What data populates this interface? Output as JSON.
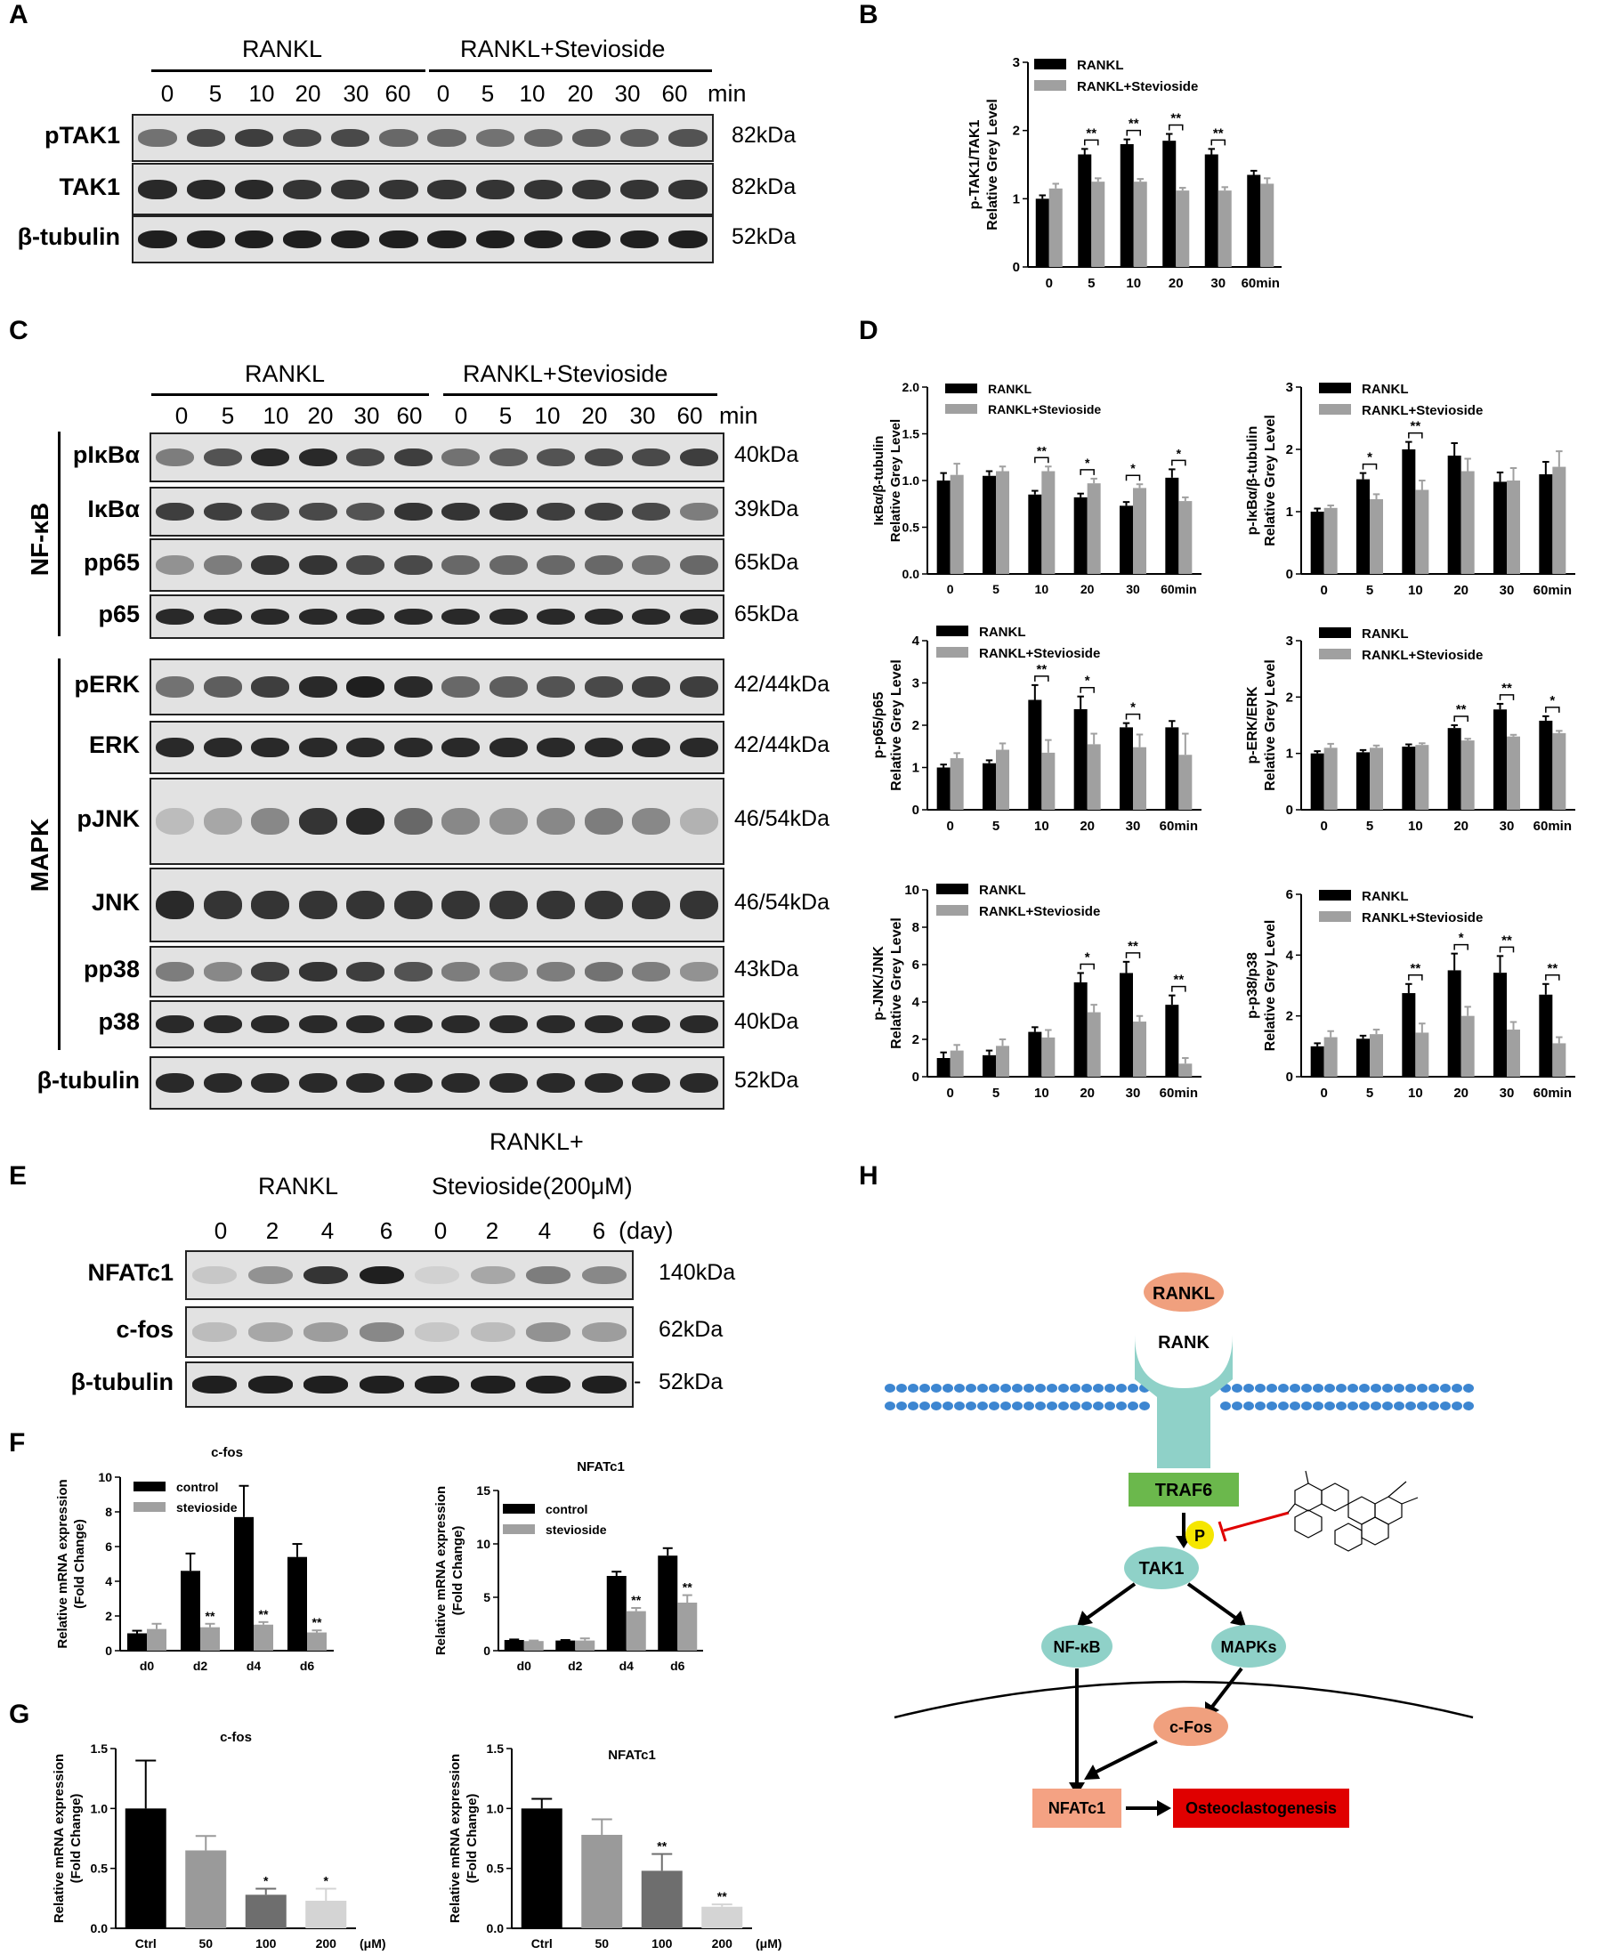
{
  "panels": {
    "A": "A",
    "B": "B",
    "C": "C",
    "D": "D",
    "E": "E",
    "F": "F",
    "G": "G",
    "H": "H"
  },
  "panelA": {
    "group1": "RANKL",
    "group2": "RANKL+Stevioside",
    "times": [
      "0",
      "5",
      "10",
      "20",
      "30",
      "60"
    ],
    "unit": "min",
    "rows": [
      {
        "label": "pTAK1",
        "kda": "82kDa",
        "intensity": [
          0.55,
          0.75,
          0.8,
          0.75,
          0.75,
          0.6,
          0.6,
          0.55,
          0.6,
          0.65,
          0.65,
          0.7
        ]
      },
      {
        "label": "TAK1",
        "kda": "82kDa",
        "intensity": [
          0.9,
          0.9,
          0.9,
          0.85,
          0.85,
          0.85,
          0.85,
          0.85,
          0.85,
          0.85,
          0.85,
          0.85
        ]
      },
      {
        "label": "β-tubulin",
        "kda": "52kDa",
        "intensity": [
          0.95,
          0.95,
          0.95,
          0.95,
          0.95,
          0.95,
          0.95,
          0.95,
          0.95,
          0.95,
          0.95,
          0.95
        ]
      }
    ]
  },
  "panelC": {
    "group1": "RANKL",
    "group2": "RANKL+Stevioside",
    "times": [
      "0",
      "5",
      "10",
      "20",
      "30",
      "60"
    ],
    "unit": "min",
    "side1": "NF-κB",
    "side2": "MAPK",
    "rows": [
      {
        "label": "pIκBα",
        "kda": "40kDa",
        "intensity": [
          0.5,
          0.7,
          0.9,
          0.9,
          0.75,
          0.8,
          0.55,
          0.65,
          0.7,
          0.75,
          0.75,
          0.8
        ]
      },
      {
        "label": "IκBα",
        "kda": "39kDa",
        "intensity": [
          0.8,
          0.8,
          0.75,
          0.75,
          0.7,
          0.85,
          0.85,
          0.85,
          0.8,
          0.8,
          0.75,
          0.5
        ]
      },
      {
        "label": "pp65",
        "kda": "65kDa",
        "intensity": [
          0.4,
          0.5,
          0.85,
          0.85,
          0.75,
          0.75,
          0.6,
          0.6,
          0.6,
          0.6,
          0.55,
          0.6
        ]
      },
      {
        "label": "p65",
        "kda": "65kDa",
        "intensity": [
          0.9,
          0.9,
          0.9,
          0.9,
          0.9,
          0.9,
          0.9,
          0.9,
          0.9,
          0.9,
          0.9,
          0.9
        ]
      },
      {
        "label": "pERK",
        "kda": "42/44kDa",
        "intensity": [
          0.55,
          0.65,
          0.8,
          0.9,
          0.95,
          0.9,
          0.6,
          0.65,
          0.7,
          0.75,
          0.8,
          0.8
        ]
      },
      {
        "label": "ERK",
        "kda": "42/44kDa",
        "intensity": [
          0.9,
          0.9,
          0.9,
          0.9,
          0.9,
          0.9,
          0.9,
          0.9,
          0.9,
          0.9,
          0.9,
          0.9
        ]
      },
      {
        "label": "pJNK",
        "kda": "46/54kDa",
        "intensity": [
          0.2,
          0.3,
          0.45,
          0.85,
          0.9,
          0.6,
          0.45,
          0.4,
          0.45,
          0.5,
          0.45,
          0.25
        ]
      },
      {
        "label": "JNK",
        "kda": "46/54kDa",
        "intensity": [
          0.9,
          0.85,
          0.85,
          0.85,
          0.85,
          0.85,
          0.85,
          0.85,
          0.85,
          0.85,
          0.85,
          0.85
        ]
      },
      {
        "label": "pp38",
        "kda": "43kDa",
        "intensity": [
          0.5,
          0.45,
          0.8,
          0.85,
          0.8,
          0.7,
          0.5,
          0.45,
          0.5,
          0.55,
          0.5,
          0.4
        ]
      },
      {
        "label": "p38",
        "kda": "40kDa",
        "intensity": [
          0.9,
          0.9,
          0.9,
          0.9,
          0.9,
          0.9,
          0.9,
          0.9,
          0.9,
          0.9,
          0.9,
          0.9
        ]
      },
      {
        "label": "β-tubulin",
        "kda": "52kDa",
        "intensity": [
          0.9,
          0.9,
          0.9,
          0.9,
          0.9,
          0.9,
          0.9,
          0.9,
          0.9,
          0.9,
          0.9,
          0.9
        ]
      }
    ]
  },
  "panelE": {
    "title": "RANKL+",
    "group1": "RANKL",
    "group2": "Stevioside(200μM)",
    "times": [
      "0",
      "2",
      "4",
      "6",
      "0",
      "2",
      "4",
      "6"
    ],
    "unit": "(day)",
    "rows": [
      {
        "label": "NFATc1",
        "kda": "140kDa",
        "intensity": [
          0.15,
          0.4,
          0.85,
          0.95,
          0.1,
          0.3,
          0.5,
          0.45
        ]
      },
      {
        "label": "c-fos",
        "kda": "62kDa",
        "intensity": [
          0.2,
          0.3,
          0.35,
          0.45,
          0.15,
          0.2,
          0.4,
          0.35
        ]
      },
      {
        "label": "β-tubulin",
        "kda": "52kDa",
        "intensity": [
          0.95,
          0.95,
          0.95,
          0.95,
          0.95,
          0.95,
          0.95,
          0.95
        ]
      }
    ],
    "dash": "-"
  },
  "panelH": {
    "rankl": "RANKL",
    "rank": "RANK",
    "traf6": "TRAF6",
    "p": "P",
    "tak1": "TAK1",
    "nfkb": "NF-κB",
    "mapks": "MAPKs",
    "cfos": "c-Fos",
    "nfatc1": "NFATc1",
    "osteo": "Osteoclastogenesis",
    "colors": {
      "rankl": "#F0A07E",
      "receptor": "#8FD1C8",
      "traf6": "#6BB84C",
      "node": "#8FD1C8",
      "p": "#F5E600",
      "red": "#E00000",
      "nfatc1": "#F4A283",
      "lipid": "#3D86D1"
    }
  },
  "chart_data": [
    {
      "id": "B",
      "type": "bar",
      "ylabel": "p-TAK1/TAK1\nRelative Grey Level",
      "categories": [
        "0",
        "5",
        "10",
        "20",
        "30",
        "60min"
      ],
      "series": [
        {
          "name": "RANKL",
          "color": "#000000",
          "values": [
            1.0,
            1.65,
            1.8,
            1.85,
            1.65,
            1.35
          ],
          "err": [
            0.05,
            0.08,
            0.07,
            0.1,
            0.08,
            0.06
          ]
        },
        {
          "name": "RANKL+Stevioside",
          "color": "#A0A0A0",
          "values": [
            1.15,
            1.25,
            1.25,
            1.12,
            1.12,
            1.22
          ],
          "err": [
            0.07,
            0.05,
            0.04,
            0.04,
            0.05,
            0.08
          ]
        }
      ],
      "ylim": [
        0,
        3
      ],
      "yticks": [
        "0",
        "1",
        "2",
        "3"
      ],
      "sig": [
        null,
        "**",
        "**",
        "**",
        "**",
        null
      ]
    },
    {
      "id": "D1",
      "type": "bar",
      "ylabel": "IκBα/β-tubulin\nRelative Grey Level",
      "categories": [
        "0",
        "5",
        "10",
        "20",
        "30",
        "60min"
      ],
      "series": [
        {
          "name": "RANKL",
          "color": "#000000",
          "values": [
            1.0,
            1.05,
            0.85,
            0.82,
            0.73,
            1.03
          ],
          "err": [
            0.08,
            0.05,
            0.04,
            0.04,
            0.04,
            0.09
          ]
        },
        {
          "name": "RANKL+Stevioside",
          "color": "#A0A0A0",
          "values": [
            1.06,
            1.1,
            1.1,
            0.97,
            0.92,
            0.78
          ],
          "err": [
            0.12,
            0.05,
            0.05,
            0.05,
            0.04,
            0.04
          ]
        }
      ],
      "ylim": [
        0,
        2.0
      ],
      "yticks": [
        "0.0",
        "0.5",
        "1.0",
        "1.5",
        "2.0"
      ],
      "sig": [
        null,
        null,
        "**",
        "*",
        "*",
        "*"
      ]
    },
    {
      "id": "D2",
      "type": "bar",
      "ylabel": "p-IκBα/β-tubulin\nRelative Grey Level",
      "categories": [
        "0",
        "5",
        "10",
        "20",
        "30",
        "60min"
      ],
      "series": [
        {
          "name": "RANKL",
          "color": "#000000",
          "values": [
            1.0,
            1.52,
            2.0,
            1.9,
            1.48,
            1.6
          ],
          "err": [
            0.05,
            0.1,
            0.12,
            0.2,
            0.15,
            0.2
          ]
        },
        {
          "name": "RANKL+Stevioside",
          "color": "#A0A0A0",
          "values": [
            1.06,
            1.2,
            1.35,
            1.65,
            1.5,
            1.72
          ],
          "err": [
            0.04,
            0.08,
            0.15,
            0.2,
            0.2,
            0.25
          ]
        }
      ],
      "ylim": [
        0,
        3
      ],
      "yticks": [
        "0",
        "1",
        "2",
        "3"
      ],
      "sig": [
        null,
        "*",
        "**",
        null,
        null,
        null
      ]
    },
    {
      "id": "D3",
      "type": "bar",
      "ylabel": "p-p65/p65\nRelative Grey Level",
      "categories": [
        "0",
        "5",
        "10",
        "20",
        "30",
        "60min"
      ],
      "series": [
        {
          "name": "RANKL",
          "color": "#000000",
          "values": [
            1.0,
            1.1,
            2.6,
            2.38,
            1.95,
            1.95
          ],
          "err": [
            0.07,
            0.07,
            0.35,
            0.3,
            0.1,
            0.15
          ]
        },
        {
          "name": "RANKL+Stevioside",
          "color": "#A0A0A0",
          "values": [
            1.22,
            1.42,
            1.35,
            1.55,
            1.48,
            1.3
          ],
          "err": [
            0.12,
            0.15,
            0.3,
            0.25,
            0.3,
            0.5
          ]
        }
      ],
      "ylim": [
        0,
        4
      ],
      "yticks": [
        "0",
        "1",
        "2",
        "3",
        "4"
      ],
      "sig": [
        null,
        null,
        "**",
        "*",
        "*",
        null
      ]
    },
    {
      "id": "D4",
      "type": "bar",
      "ylabel": "p-ERK/ERK\nRelative Grey Level",
      "categories": [
        "0",
        "5",
        "10",
        "20",
        "30",
        "60min"
      ],
      "series": [
        {
          "name": "RANKL",
          "color": "#000000",
          "values": [
            1.0,
            1.02,
            1.12,
            1.45,
            1.78,
            1.58
          ],
          "err": [
            0.04,
            0.04,
            0.04,
            0.05,
            0.1,
            0.08
          ]
        },
        {
          "name": "RANKL+Stevioside",
          "color": "#A0A0A0",
          "values": [
            1.1,
            1.1,
            1.15,
            1.23,
            1.3,
            1.36
          ],
          "err": [
            0.07,
            0.04,
            0.03,
            0.03,
            0.03,
            0.04
          ]
        }
      ],
      "ylim": [
        0,
        3
      ],
      "yticks": [
        "0",
        "1",
        "2",
        "3"
      ],
      "sig": [
        null,
        null,
        null,
        "**",
        "**",
        "*"
      ]
    },
    {
      "id": "D5",
      "type": "bar",
      "ylabel": "p-JNK/JNK\nRelative Grey Level",
      "categories": [
        "0",
        "5",
        "10",
        "20",
        "30",
        "60min"
      ],
      "series": [
        {
          "name": "RANKL",
          "color": "#000000",
          "values": [
            1.0,
            1.15,
            2.4,
            5.05,
            5.55,
            3.85
          ],
          "err": [
            0.3,
            0.25,
            0.25,
            0.5,
            0.6,
            0.5
          ]
        },
        {
          "name": "RANKL+Stevioside",
          "color": "#A0A0A0",
          "values": [
            1.4,
            1.65,
            2.1,
            3.45,
            2.95,
            0.7
          ],
          "err": [
            0.3,
            0.35,
            0.4,
            0.4,
            0.3,
            0.3
          ]
        }
      ],
      "ylim": [
        0,
        10
      ],
      "yticks": [
        "0",
        "2",
        "4",
        "6",
        "8",
        "10"
      ],
      "sig": [
        null,
        null,
        null,
        "*",
        "**",
        "**"
      ]
    },
    {
      "id": "D6",
      "type": "bar",
      "ylabel": "p-p38/p38\nRelative Grey Level",
      "categories": [
        "0",
        "5",
        "10",
        "20",
        "30",
        "60min"
      ],
      "series": [
        {
          "name": "RANKL",
          "color": "#000000",
          "values": [
            1.0,
            1.25,
            2.75,
            3.5,
            3.42,
            2.7
          ],
          "err": [
            0.1,
            0.1,
            0.3,
            0.55,
            0.55,
            0.35
          ]
        },
        {
          "name": "RANKL+Stevioside",
          "color": "#A0A0A0",
          "values": [
            1.3,
            1.4,
            1.45,
            2.0,
            1.55,
            1.1
          ],
          "err": [
            0.2,
            0.15,
            0.3,
            0.3,
            0.25,
            0.2
          ]
        }
      ],
      "ylim": [
        0,
        6
      ],
      "yticks": [
        "0",
        "2",
        "4",
        "6"
      ],
      "sig": [
        null,
        null,
        "**",
        "*",
        "**",
        "**"
      ]
    },
    {
      "id": "F1",
      "type": "bar",
      "title": "c-fos",
      "ylabel": "Relative mRNA expression\n(Fold Change)",
      "categories": [
        "d0",
        "d2",
        "d4",
        "d6"
      ],
      "series": [
        {
          "name": "control",
          "color": "#000000",
          "values": [
            1.0,
            4.6,
            7.7,
            5.4
          ],
          "err": [
            0.15,
            1.0,
            1.8,
            0.75
          ]
        },
        {
          "name": "stevioside",
          "color": "#A0A0A0",
          "values": [
            1.25,
            1.35,
            1.5,
            1.05
          ],
          "err": [
            0.3,
            0.2,
            0.15,
            0.12
          ]
        }
      ],
      "ylim": [
        0,
        10
      ],
      "yticks": [
        "0",
        "2",
        "4",
        "6",
        "8",
        "10"
      ],
      "sig": [
        null,
        "**",
        "**",
        "**"
      ],
      "sigOn": "series2"
    },
    {
      "id": "F2",
      "type": "bar",
      "title": "NFATc1",
      "ylabel": "Relative mRNA expression\n(Fold Change)",
      "categories": [
        "d0",
        "d2",
        "d4",
        "d6"
      ],
      "series": [
        {
          "name": "control",
          "color": "#000000",
          "values": [
            1.0,
            0.95,
            7.0,
            8.9
          ],
          "err": [
            0.05,
            0.05,
            0.4,
            0.7
          ]
        },
        {
          "name": "stevioside",
          "color": "#A0A0A0",
          "values": [
            0.9,
            0.95,
            3.7,
            4.5
          ],
          "err": [
            0.05,
            0.2,
            0.3,
            0.7
          ]
        }
      ],
      "ylim": [
        0,
        15
      ],
      "yticks": [
        "0",
        "5",
        "10",
        "15"
      ],
      "sig": [
        null,
        null,
        "**",
        "**"
      ],
      "sigOn": "series2"
    },
    {
      "id": "G1",
      "type": "bar",
      "title": "c-fos",
      "ylabel": "Relative mRNA expression\n(Fold Change)",
      "categories": [
        "Ctrl",
        "50",
        "100",
        "200"
      ],
      "unitLabel": "(μM)",
      "series": [
        {
          "name": "",
          "colors": [
            "#000000",
            "#9A9A9A",
            "#6E6E6E",
            "#D4D4D4"
          ],
          "values": [
            1.0,
            0.65,
            0.28,
            0.23
          ],
          "err": [
            0.4,
            0.12,
            0.05,
            0.1
          ]
        }
      ],
      "ylim": [
        0,
        1.5
      ],
      "yticks": [
        "0.0",
        "0.5",
        "1.0",
        "1.5"
      ],
      "sig": [
        null,
        null,
        "*",
        "*"
      ]
    },
    {
      "id": "G2",
      "type": "bar",
      "title": "NFATc1",
      "ylabel": "Relative mRNA expression\n(Fold Change)",
      "categories": [
        "Ctrl",
        "50",
        "100",
        "200"
      ],
      "unitLabel": "(μM)",
      "series": [
        {
          "name": "",
          "colors": [
            "#000000",
            "#9A9A9A",
            "#6E6E6E",
            "#D4D4D4"
          ],
          "values": [
            1.0,
            0.78,
            0.48,
            0.18
          ],
          "err": [
            0.08,
            0.13,
            0.14,
            0.02
          ]
        }
      ],
      "ylim": [
        0,
        1.5
      ],
      "yticks": [
        "0.0",
        "0.5",
        "1.0",
        "1.5"
      ],
      "sig": [
        null,
        null,
        "**",
        "**"
      ]
    }
  ]
}
